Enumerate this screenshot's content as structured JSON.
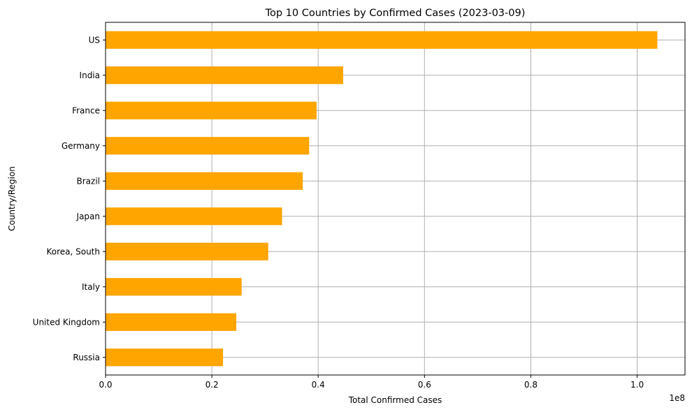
{
  "chart_data": {
    "type": "bar",
    "orientation": "horizontal",
    "title": "Top 10 Countries by Confirmed Cases (2023-03-09)",
    "xlabel": "Total Confirmed Cases",
    "ylabel": "Country/Region",
    "x_scale_label": "1e8",
    "xlim": [
      0,
      1.09
    ],
    "x_ticks": [
      0.0,
      0.2,
      0.4,
      0.6,
      0.8,
      1.0
    ],
    "x_tick_labels": [
      "0.0",
      "0.2",
      "0.4",
      "0.6",
      "0.8",
      "1.0"
    ],
    "grid": true,
    "bar_color": "#ffa500",
    "grid_color": "#b0b0b0",
    "categories": [
      "US",
      "India",
      "France",
      "Germany",
      "Brazil",
      "Japan",
      "Korea, South",
      "Italy",
      "United Kingdom",
      "Russia"
    ],
    "values": [
      1.038,
      0.447,
      0.397,
      0.383,
      0.371,
      0.332,
      0.306,
      0.256,
      0.246,
      0.221
    ]
  }
}
